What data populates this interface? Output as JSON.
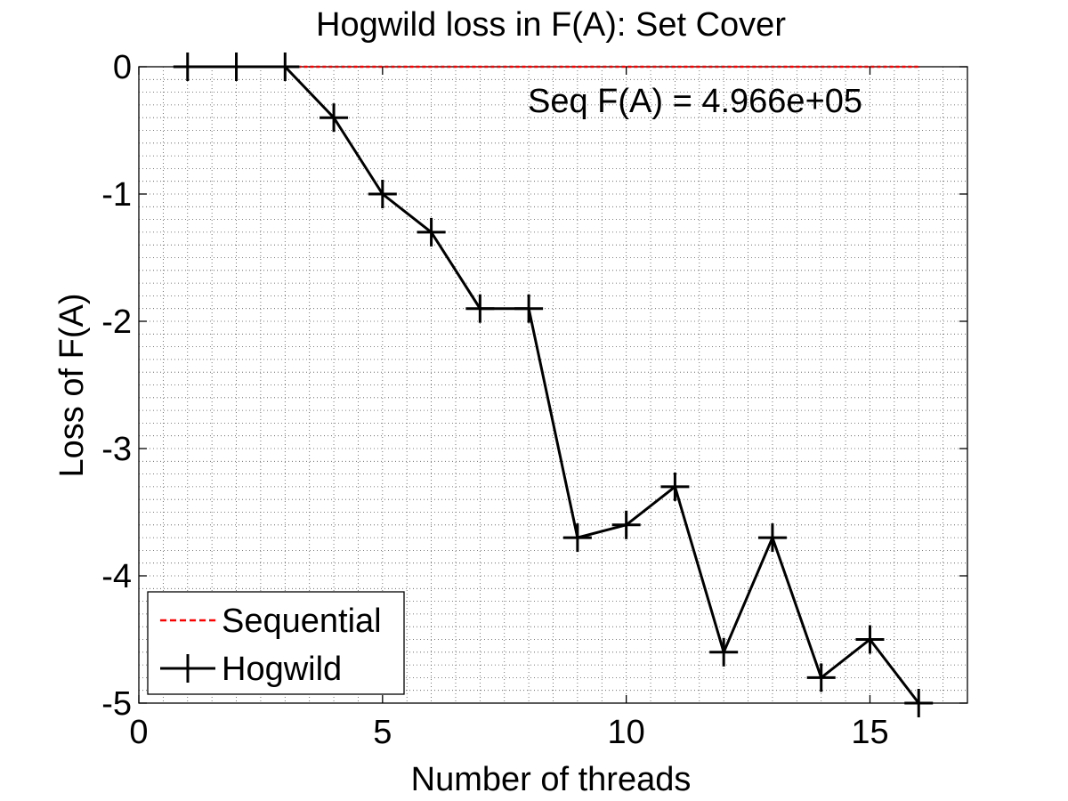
{
  "chart_data": {
    "type": "line",
    "title": "Hogwild loss in F(A): Set Cover",
    "xlabel": "Number of threads",
    "ylabel": "Loss of F(A)",
    "xlim": [
      0,
      17
    ],
    "ylim": [
      -5,
      0
    ],
    "xticks": [
      0,
      5,
      10,
      15
    ],
    "yticks": [
      0,
      -1,
      -2,
      -3,
      -4,
      -5
    ],
    "xtick_labels": [
      "0",
      "5",
      "10",
      "15"
    ],
    "ytick_labels": [
      "0",
      "-1",
      "-2",
      "-3",
      "-4",
      "-5"
    ],
    "grid": true,
    "legend_position": "bottom-left",
    "annotation": "Seq F(A) = 4.966e+05",
    "series": [
      {
        "name": "Sequential",
        "color": "#ff0000",
        "style": "dashed",
        "marker": "none",
        "x": [
          3,
          16
        ],
        "y": [
          0,
          0
        ]
      },
      {
        "name": "Hogwild",
        "color": "#000000",
        "style": "solid",
        "marker": "plus",
        "x": [
          1,
          2,
          3,
          4,
          5,
          6,
          7,
          8,
          9,
          10,
          11,
          12,
          13,
          14,
          15,
          16
        ],
        "y": [
          0,
          0,
          0,
          -0.4,
          -1.0,
          -1.3,
          -1.9,
          -1.9,
          -3.7,
          -3.6,
          -3.3,
          -4.6,
          -3.7,
          -4.8,
          -4.5,
          -5.0
        ]
      }
    ]
  }
}
